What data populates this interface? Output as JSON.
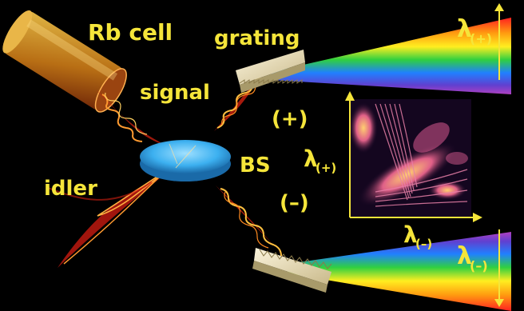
{
  "labels": {
    "rb_cell": "Rb cell",
    "grating": "grating",
    "signal": "signal",
    "idler": "idler",
    "bs": "BS",
    "plus": "(+)",
    "minus": "(–)",
    "lambda_symbol": "λ",
    "plus_sub": "(+)",
    "minus_sub": "(–)"
  },
  "colors": {
    "background": "#000000",
    "label_yellow": "#f5e53a",
    "beam_orange": "#ff7a1a",
    "beam_red": "#d02010",
    "beamsplitter_blue": "#3cb0f0",
    "rb_cell_gold": "#d89a2a",
    "grating_cream": "#efe6c4",
    "inset_dark": "#1a0828",
    "inset_pink": "#e06088",
    "inset_orange": "#f5b050"
  },
  "icons": {
    "rb_cell": "rubidium-vapor-cell-icon",
    "beamsplitter": "beamsplitter-disc-icon",
    "grating": "diffraction-grating-icon",
    "spectrum": "rainbow-fan-icon"
  }
}
